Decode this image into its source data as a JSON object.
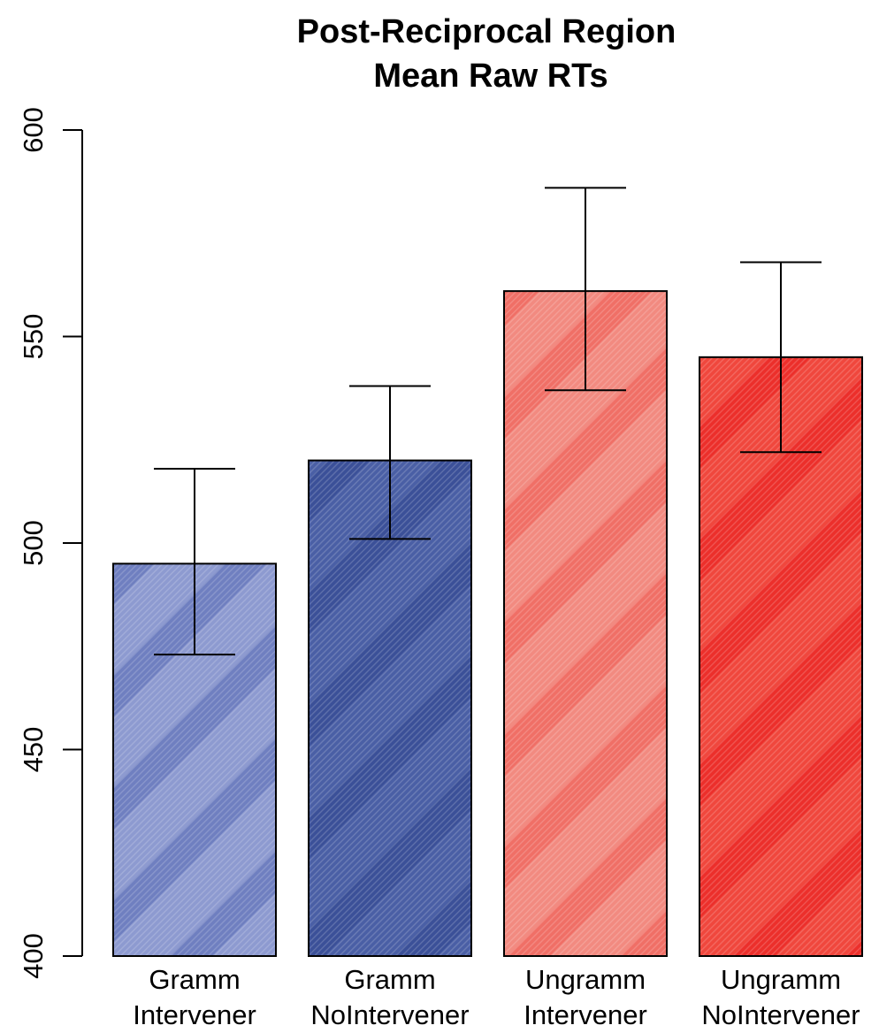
{
  "chart_data": {
    "type": "bar",
    "title": [
      "Post-Reciprocal Region",
      "Mean Raw RTs"
    ],
    "xlabel": "",
    "ylabel": "",
    "ylim": [
      400,
      600
    ],
    "yticks": [
      "400",
      "450",
      "500",
      "550",
      "600"
    ],
    "categories": [
      [
        "Gramm",
        "Intervener"
      ],
      [
        "Gramm",
        "NoIntervener"
      ],
      [
        "Ungramm",
        "Intervener"
      ],
      [
        "Ungramm",
        "NoIntervener"
      ]
    ],
    "values": [
      495,
      520,
      561,
      545
    ],
    "error_low": [
      473,
      501,
      537,
      522
    ],
    "error_high": [
      518,
      538,
      586,
      568
    ],
    "colors": [
      "#8d9ad0",
      "#4a5fa5",
      "#f28a80",
      "#f0473d"
    ],
    "stripe_colors": [
      "#6f7fc0",
      "#3b5098",
      "#f06f66",
      "#ec2f2b"
    ],
    "grid": false,
    "legend": "none"
  }
}
